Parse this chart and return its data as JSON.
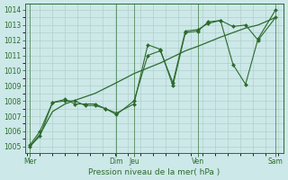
{
  "xlabel": "Pression niveau de la mer( hPa )",
  "bg_color": "#cce8e8",
  "grid_color": "#b0d0cc",
  "line_color": "#2d6b2d",
  "ylim": [
    1004.6,
    1014.4
  ],
  "yticks": [
    1005,
    1006,
    1007,
    1008,
    1009,
    1010,
    1011,
    1012,
    1013,
    1014
  ],
  "xlim": [
    -0.1,
    10.2
  ],
  "xtick_labels": [
    "Mer",
    "Dim",
    "Jeu",
    "Ven",
    "Sam"
  ],
  "xtick_positions": [
    0.1,
    3.55,
    4.25,
    6.8,
    9.9
  ],
  "vline_positions": [
    0.1,
    3.55,
    4.25,
    6.8,
    9.9
  ],
  "line1_x": [
    0.1,
    0.5,
    1.0,
    1.5,
    1.9,
    2.3,
    2.7,
    3.1,
    3.55,
    4.25,
    4.8,
    5.3,
    5.8,
    6.3,
    6.8,
    7.2,
    7.7,
    8.2,
    8.7,
    9.2,
    9.9
  ],
  "line1_y": [
    1005.0,
    1005.7,
    1007.9,
    1008.0,
    1008.0,
    1007.7,
    1007.7,
    1007.5,
    1007.2,
    1007.8,
    1011.7,
    1011.4,
    1009.0,
    1012.5,
    1012.6,
    1013.2,
    1013.3,
    1010.4,
    1009.1,
    1012.1,
    1014.0
  ],
  "line2_x": [
    0.1,
    0.5,
    1.0,
    1.5,
    1.9,
    2.3,
    2.7,
    3.1,
    3.55,
    4.25,
    4.8,
    5.3,
    5.8,
    6.3,
    6.8,
    7.2,
    7.7,
    8.2,
    8.7,
    9.2,
    9.9
  ],
  "line2_y": [
    1005.1,
    1006.0,
    1007.9,
    1008.1,
    1007.8,
    1007.8,
    1007.8,
    1007.5,
    1007.1,
    1008.0,
    1011.0,
    1011.3,
    1009.2,
    1012.6,
    1012.7,
    1013.1,
    1013.3,
    1012.9,
    1013.0,
    1012.0,
    1013.5
  ],
  "line3_x": [
    0.1,
    0.5,
    1.0,
    1.5,
    2.0,
    2.7,
    3.55,
    4.25,
    5.3,
    6.3,
    6.8,
    7.7,
    8.7,
    9.2,
    9.9
  ],
  "line3_y": [
    1005.0,
    1005.8,
    1007.3,
    1007.8,
    1008.1,
    1008.5,
    1009.2,
    1009.8,
    1010.5,
    1011.3,
    1011.6,
    1012.2,
    1012.8,
    1013.0,
    1013.5
  ]
}
